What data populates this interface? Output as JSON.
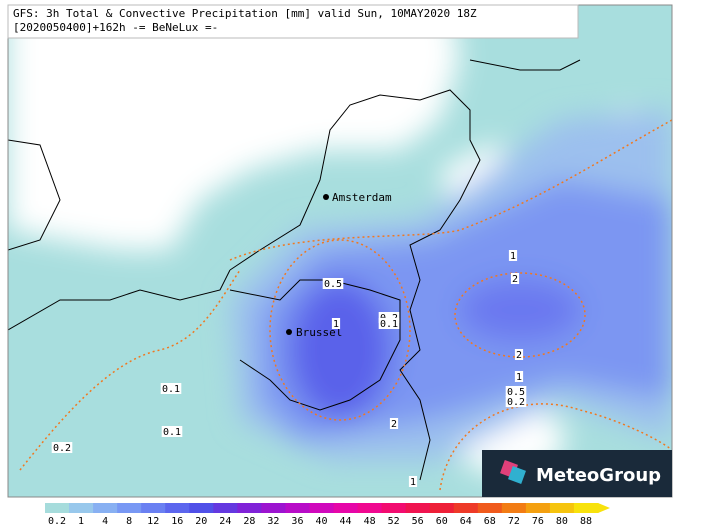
{
  "header": {
    "lines": [
      "GFS: 3h Total & Convective Precipitation [mm] valid Sun, 10MAY2020 18Z",
      "[2020050400]+162h -= BeNeLux =-"
    ]
  },
  "cities": [
    "Amsterdam",
    "Brussel"
  ],
  "contour_labels": [
    0.5,
    1,
    0.2,
    0.1,
    0.1,
    0.1,
    0.2,
    2,
    1,
    2,
    2,
    1,
    0.5,
    0.2,
    1
  ],
  "logo": "MeteoGroup",
  "colorbar": {
    "labels": [
      0.2,
      1,
      4,
      8,
      12,
      16,
      20,
      24,
      28,
      32,
      36,
      40,
      44,
      48,
      52,
      56,
      60,
      64,
      68,
      72,
      76,
      80,
      88
    ],
    "colors": [
      "#a6dcdc",
      "#98c8ec",
      "#88b0f2",
      "#7898f4",
      "#6a80f2",
      "#5c66ee",
      "#5050e8",
      "#6438e0",
      "#8022d8",
      "#9c14d0",
      "#b80cc8",
      "#d008bc",
      "#e606a8",
      "#f00890",
      "#f20c70",
      "#f01450",
      "#ee2038",
      "#ee3a28",
      "#f05a1c",
      "#f27c14",
      "#f4a010",
      "#f6c40e",
      "#f8e20c"
    ]
  }
}
